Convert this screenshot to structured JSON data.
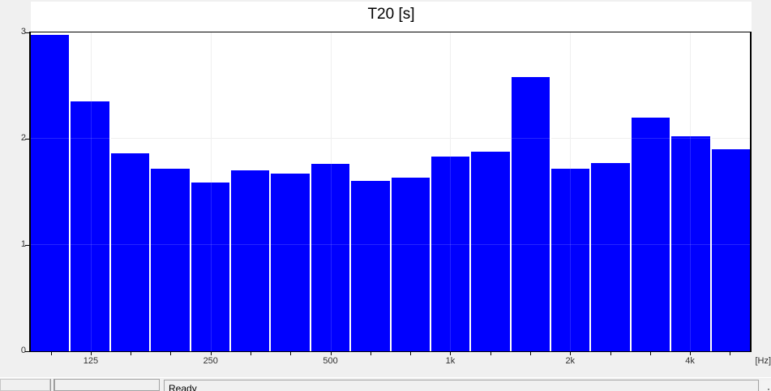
{
  "window": {
    "background_color": "#f0f0f0"
  },
  "chart_data": {
    "type": "bar",
    "title": "T20 [s]",
    "xlabel": "",
    "ylabel": "",
    "x_unit_label": "[Hz]",
    "ylim": [
      0,
      3
    ],
    "yticks": [
      "0",
      "1",
      "2",
      "3"
    ],
    "n_bars": 18,
    "values": [
      2.98,
      2.35,
      1.86,
      1.72,
      1.59,
      1.7,
      1.67,
      1.76,
      1.6,
      1.63,
      1.83,
      1.88,
      2.58,
      1.72,
      1.77,
      2.2,
      2.02,
      1.9
    ],
    "x_ticks": [
      {
        "bar_index": 1,
        "label": "125"
      },
      {
        "bar_index": 4,
        "label": "250"
      },
      {
        "bar_index": 7,
        "label": "500"
      },
      {
        "bar_index": 10,
        "label": "1k"
      },
      {
        "bar_index": 13,
        "label": "2k"
      },
      {
        "bar_index": 16,
        "label": "4k"
      }
    ],
    "bar_color": "#0000ff",
    "grid": true,
    "legend_position": "none"
  },
  "status_bar": {
    "ready_label": "Ready"
  }
}
